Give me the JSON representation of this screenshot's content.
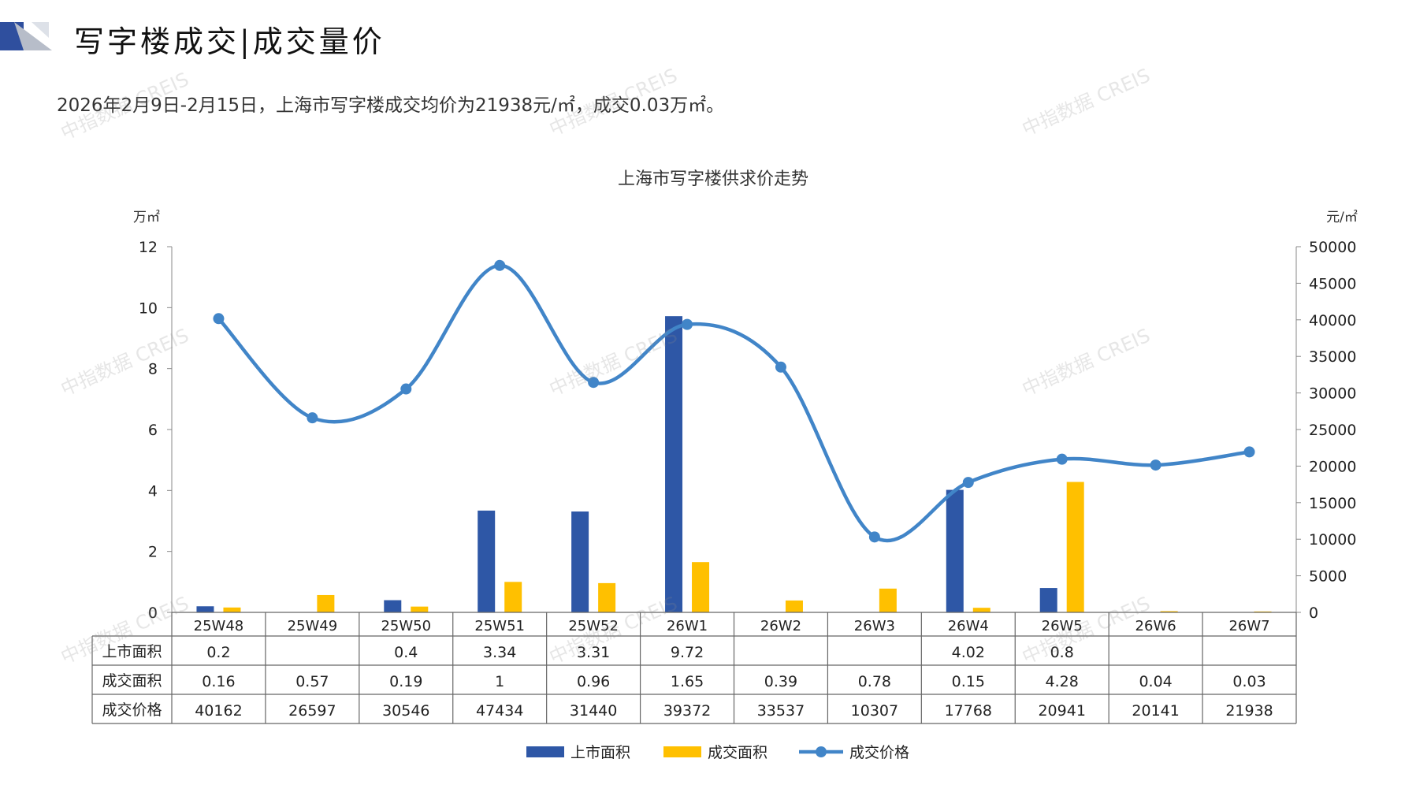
{
  "header": {
    "title": "写字楼成交|成交量价",
    "summary": "2026年2月9日-2月15日，上海市写字楼成交均价为21938元/㎡，成交0.03万㎡。"
  },
  "watermark": "中指数据 CREIS",
  "colors": {
    "supply": "#2E57A6",
    "deal_area": "#FFC000",
    "price": "#4185C8",
    "deco_dark": "#2F4F9E",
    "deco_light": "#B7BDC9"
  },
  "chart_data": {
    "type": "bar+line",
    "title": "上海市写字楼供求价走势",
    "ylabel_left": "万㎡",
    "ylabel_right": "元/㎡",
    "ylim_left": [
      0,
      12
    ],
    "yticks_left": [
      0,
      2,
      4,
      6,
      8,
      10,
      12
    ],
    "ylim_right": [
      0,
      50000
    ],
    "yticks_right": [
      0,
      5000,
      10000,
      15000,
      20000,
      25000,
      30000,
      35000,
      40000,
      45000,
      50000
    ],
    "categories": [
      "25W48",
      "25W49",
      "25W50",
      "25W51",
      "25W52",
      "26W1",
      "26W2",
      "26W3",
      "26W4",
      "26W5",
      "26W6",
      "26W7"
    ],
    "series": [
      {
        "name": "上市面积",
        "type": "bar",
        "axis": "left",
        "values": [
          0.2,
          null,
          0.4,
          3.34,
          3.31,
          9.72,
          null,
          null,
          4.02,
          0.8,
          null,
          null
        ]
      },
      {
        "name": "成交面积",
        "type": "bar",
        "axis": "left",
        "values": [
          0.16,
          0.57,
          0.19,
          1,
          0.96,
          1.65,
          0.39,
          0.78,
          0.15,
          4.28,
          0.04,
          0.03
        ]
      },
      {
        "name": "成交价格",
        "type": "line",
        "axis": "right",
        "smooth": true,
        "values": [
          40162,
          26597,
          30546,
          47434,
          31440,
          39372,
          33537,
          10307,
          17768,
          20941,
          20141,
          21938
        ]
      }
    ],
    "table_labels": [
      "上市面积",
      "成交面积",
      "成交价格"
    ],
    "legend": "bottom-center",
    "grid": false
  }
}
